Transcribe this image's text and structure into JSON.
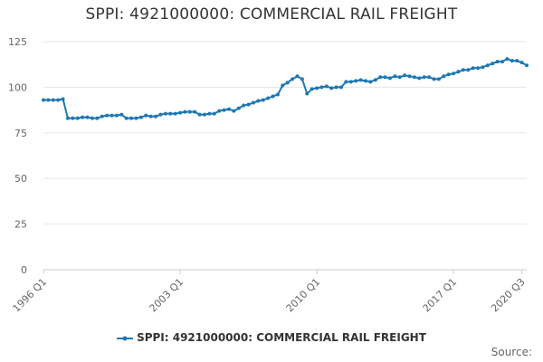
{
  "chart_data": {
    "type": "line",
    "title": "SPPI: 4921000000: COMMERCIAL RAIL FREIGHT",
    "xlabel": "",
    "ylabel": "",
    "ylim": [
      0,
      125
    ],
    "yticks": [
      0,
      25,
      50,
      75,
      100,
      125
    ],
    "x_start": "1996 Q1",
    "x_end": "2020 Q3",
    "xtick_labels": [
      {
        "label": "1996 Q1",
        "index": 0
      },
      {
        "label": "2003 Q1",
        "index": 28
      },
      {
        "label": "2010 Q1",
        "index": 56
      },
      {
        "label": "2017 Q1",
        "index": 84
      },
      {
        "label": "2020 Q3",
        "index": 98
      }
    ],
    "series": [
      {
        "name": "SPPI: 4921000000: COMMERCIAL RAIL FREIGHT",
        "color": "#1f77b4",
        "values": [
          93,
          93,
          93,
          93,
          93.5,
          83,
          83,
          83,
          83.5,
          83.5,
          83,
          83,
          84,
          84.5,
          84.5,
          84.5,
          85,
          83,
          83,
          83,
          83.5,
          84.5,
          84,
          84,
          85,
          85.5,
          85.5,
          85.5,
          86,
          86.5,
          86.5,
          86.5,
          85,
          85,
          85.5,
          85.5,
          87,
          87.5,
          88,
          87,
          88.5,
          90,
          90.5,
          91.5,
          92.5,
          93,
          94,
          95,
          96,
          101,
          102.5,
          104.5,
          106,
          104.5,
          96.5,
          99,
          99.5,
          100,
          100.5,
          99.5,
          100,
          100,
          103,
          103,
          103.5,
          104,
          103.5,
          103,
          104,
          105.5,
          105.5,
          105,
          106,
          105.5,
          106.5,
          106,
          105.5,
          105,
          105.5,
          105.5,
          104.5,
          104.5,
          106,
          107,
          107.5,
          108.5,
          109.5,
          109.5,
          110.5,
          110.5,
          111,
          112,
          113,
          114,
          114,
          115.5,
          114.5,
          114.5,
          113.5,
          112
        ]
      }
    ],
    "legend": {
      "position": "bottom-center",
      "label": "SPPI: 4921000000: COMMERCIAL RAIL FREIGHT"
    },
    "source_label": "Source:"
  }
}
